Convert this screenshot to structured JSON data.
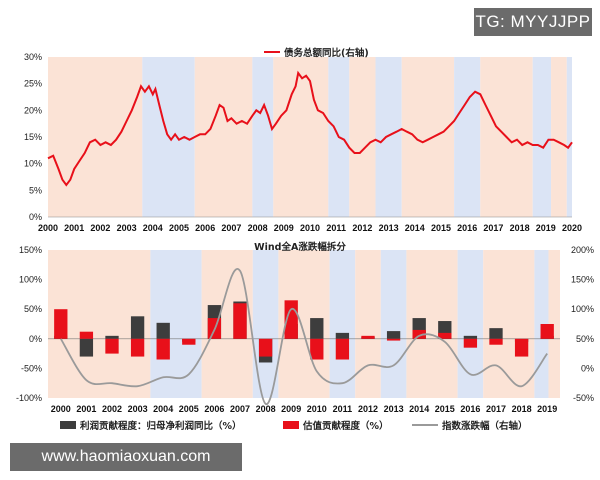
{
  "watermarks": {
    "top_right": "TG: MYYJJPP",
    "bottom_left": "www.haomiaoxuan.com"
  },
  "colors": {
    "red": "#e8101a",
    "dark_bar": "#3d3d3d",
    "grey_line": "#9a9a9a",
    "band_peach": "#fbe3d6",
    "band_blue": "#dbe4f5"
  },
  "chart_data": [
    {
      "type": "line",
      "title": "",
      "legend": [
        {
          "label": "债务总额同比(右轴)",
          "color": "#e8101a"
        }
      ],
      "x_ticks": [
        "2000",
        "2001",
        "2002",
        "2003",
        "2004",
        "2005",
        "2006",
        "2007",
        "2008",
        "2009",
        "2010",
        "2011",
        "2012",
        "2013",
        "2014",
        "2015",
        "2016",
        "2017",
        "2018",
        "2019",
        "2020"
      ],
      "y_ticks": [
        "0%",
        "5%",
        "10%",
        "15%",
        "20%",
        "25%",
        "30%"
      ],
      "ylim": [
        0,
        30
      ],
      "xlim": [
        2000,
        2020
      ],
      "bands": [
        {
          "from": 2000.0,
          "to": 2003.6,
          "color": "peach"
        },
        {
          "from": 2003.6,
          "to": 2005.6,
          "color": "blue"
        },
        {
          "from": 2005.6,
          "to": 2007.8,
          "color": "peach"
        },
        {
          "from": 2007.8,
          "to": 2008.6,
          "color": "blue"
        },
        {
          "from": 2008.6,
          "to": 2010.7,
          "color": "peach"
        },
        {
          "from": 2010.7,
          "to": 2011.5,
          "color": "blue"
        },
        {
          "from": 2011.5,
          "to": 2012.5,
          "color": "peach"
        },
        {
          "from": 2012.5,
          "to": 2013.5,
          "color": "blue"
        },
        {
          "from": 2013.5,
          "to": 2015.5,
          "color": "peach"
        },
        {
          "from": 2015.5,
          "to": 2016.5,
          "color": "blue"
        },
        {
          "from": 2016.5,
          "to": 2018.5,
          "color": "peach"
        },
        {
          "from": 2018.5,
          "to": 2019.2,
          "color": "blue"
        },
        {
          "from": 2019.2,
          "to": 2019.8,
          "color": "peach"
        },
        {
          "from": 2019.8,
          "to": 2020.0,
          "color": "blue"
        }
      ],
      "series": [
        {
          "name": "债务总额同比(右轴)",
          "points": [
            [
              2000.0,
              11.0
            ],
            [
              2000.2,
              11.5
            ],
            [
              2000.4,
              9.0
            ],
            [
              2000.55,
              7.0
            ],
            [
              2000.7,
              6.0
            ],
            [
              2000.85,
              7.0
            ],
            [
              2001.0,
              9.0
            ],
            [
              2001.2,
              10.5
            ],
            [
              2001.4,
              12.0
            ],
            [
              2001.6,
              14.0
            ],
            [
              2001.8,
              14.5
            ],
            [
              2002.0,
              13.5
            ],
            [
              2002.2,
              14.0
            ],
            [
              2002.4,
              13.5
            ],
            [
              2002.6,
              14.5
            ],
            [
              2002.8,
              16.0
            ],
            [
              2003.0,
              18.0
            ],
            [
              2003.2,
              20.0
            ],
            [
              2003.4,
              22.5
            ],
            [
              2003.55,
              24.5
            ],
            [
              2003.7,
              23.5
            ],
            [
              2003.85,
              24.5
            ],
            [
              2004.0,
              23.0
            ],
            [
              2004.1,
              24.0
            ],
            [
              2004.25,
              21.0
            ],
            [
              2004.4,
              18.0
            ],
            [
              2004.55,
              15.5
            ],
            [
              2004.7,
              14.5
            ],
            [
              2004.85,
              15.5
            ],
            [
              2005.0,
              14.5
            ],
            [
              2005.2,
              15.0
            ],
            [
              2005.4,
              14.5
            ],
            [
              2005.6,
              15.0
            ],
            [
              2005.8,
              15.5
            ],
            [
              2006.0,
              15.5
            ],
            [
              2006.2,
              16.5
            ],
            [
              2006.4,
              19.0
            ],
            [
              2006.55,
              21.0
            ],
            [
              2006.7,
              20.5
            ],
            [
              2006.85,
              18.0
            ],
            [
              2007.0,
              18.5
            ],
            [
              2007.2,
              17.5
            ],
            [
              2007.4,
              18.0
            ],
            [
              2007.6,
              17.5
            ],
            [
              2007.8,
              19.0
            ],
            [
              2007.95,
              20.0
            ],
            [
              2008.1,
              19.5
            ],
            [
              2008.25,
              21.0
            ],
            [
              2008.4,
              19.0
            ],
            [
              2008.55,
              16.5
            ],
            [
              2008.7,
              17.5
            ],
            [
              2008.9,
              19.0
            ],
            [
              2009.1,
              20.0
            ],
            [
              2009.3,
              23.0
            ],
            [
              2009.45,
              24.5
            ],
            [
              2009.55,
              27.0
            ],
            [
              2009.7,
              26.0
            ],
            [
              2009.85,
              26.5
            ],
            [
              2010.0,
              25.5
            ],
            [
              2010.15,
              22.0
            ],
            [
              2010.3,
              20.0
            ],
            [
              2010.5,
              19.5
            ],
            [
              2010.7,
              18.0
            ],
            [
              2010.9,
              17.0
            ],
            [
              2011.1,
              15.0
            ],
            [
              2011.3,
              14.5
            ],
            [
              2011.5,
              13.0
            ],
            [
              2011.7,
              12.0
            ],
            [
              2011.9,
              12.0
            ],
            [
              2012.1,
              13.0
            ],
            [
              2012.3,
              14.0
            ],
            [
              2012.5,
              14.5
            ],
            [
              2012.7,
              14.0
            ],
            [
              2012.9,
              15.0
            ],
            [
              2013.1,
              15.5
            ],
            [
              2013.3,
              16.0
            ],
            [
              2013.5,
              16.5
            ],
            [
              2013.7,
              16.0
            ],
            [
              2013.9,
              15.5
            ],
            [
              2014.1,
              14.5
            ],
            [
              2014.3,
              14.0
            ],
            [
              2014.5,
              14.5
            ],
            [
              2014.7,
              15.0
            ],
            [
              2014.9,
              15.5
            ],
            [
              2015.1,
              16.0
            ],
            [
              2015.3,
              17.0
            ],
            [
              2015.5,
              18.0
            ],
            [
              2015.7,
              19.5
            ],
            [
              2015.9,
              21.0
            ],
            [
              2016.1,
              22.5
            ],
            [
              2016.3,
              23.5
            ],
            [
              2016.5,
              23.0
            ],
            [
              2016.7,
              21.0
            ],
            [
              2016.9,
              19.0
            ],
            [
              2017.1,
              17.0
            ],
            [
              2017.3,
              16.0
            ],
            [
              2017.5,
              15.0
            ],
            [
              2017.7,
              14.0
            ],
            [
              2017.9,
              14.5
            ],
            [
              2018.1,
              13.5
            ],
            [
              2018.3,
              14.0
            ],
            [
              2018.5,
              13.5
            ],
            [
              2018.7,
              13.5
            ],
            [
              2018.9,
              13.0
            ],
            [
              2019.1,
              14.5
            ],
            [
              2019.3,
              14.5
            ],
            [
              2019.5,
              14.0
            ],
            [
              2019.7,
              13.5
            ],
            [
              2019.85,
              13.0
            ],
            [
              2020.0,
              14.0
            ]
          ]
        }
      ]
    },
    {
      "type": "bar",
      "title": "Wind全A涨跌幅拆分",
      "categories": [
        "2000",
        "2001",
        "2002",
        "2003",
        "2004",
        "2005",
        "2006",
        "2007",
        "2008",
        "2009",
        "2010",
        "2011",
        "2012",
        "2013",
        "2014",
        "2015",
        "2016",
        "2017",
        "2018",
        "2019"
      ],
      "y_ticks_left": [
        "-100%",
        "-50%",
        "0%",
        "50%",
        "100%",
        "150%"
      ],
      "ylim_left": [
        -100,
        150
      ],
      "y_ticks_right": [
        "-50%",
        "0%",
        "50%",
        "100%",
        "150%",
        "200%"
      ],
      "ylim_right": [
        -50,
        200
      ],
      "series": [
        {
          "name": "利润贡献程度：归母净利润同比（%）",
          "color": "#3d3d3d",
          "values": [
            5,
            -30,
            5,
            38,
            27,
            -5,
            57,
            63,
            -40,
            25,
            35,
            10,
            3,
            13,
            35,
            30,
            5,
            18,
            -5,
            5
          ]
        },
        {
          "name": "估值贡献程度（%）",
          "color": "#e8101a",
          "values": [
            50,
            12,
            -25,
            -30,
            -35,
            -10,
            35,
            60,
            -30,
            65,
            -35,
            -35,
            5,
            -3,
            15,
            10,
            -15,
            -10,
            -30,
            25
          ]
        },
        {
          "name": "指数涨跌幅（右轴）",
          "color": "#9a9a9a",
          "type": "line",
          "values": [
            50,
            -20,
            -25,
            -30,
            -15,
            -10,
            65,
            165,
            -60,
            100,
            -5,
            -25,
            5,
            5,
            55,
            45,
            -10,
            5,
            -30,
            25
          ]
        }
      ]
    }
  ]
}
